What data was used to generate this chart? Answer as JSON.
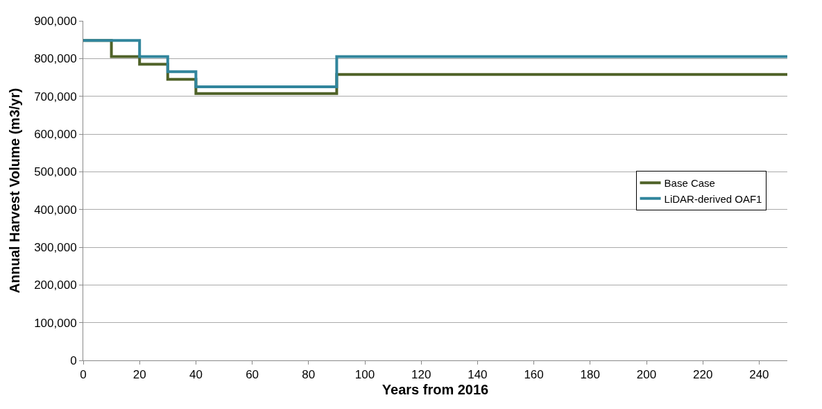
{
  "chart_data": {
    "type": "step",
    "xlabel": "Years from 2016",
    "ylabel": "Annual Harvest Volume (m3/yr)",
    "series": [
      {
        "name": "Base Case",
        "color": "#4f6228",
        "x": [
          0,
          10,
          20,
          30,
          40,
          90,
          250
        ],
        "values": [
          848000,
          805000,
          785000,
          745000,
          707000,
          758000,
          758000
        ]
      },
      {
        "name": "LiDAR-derived OAF1",
        "color": "#31859c",
        "x": [
          0,
          20,
          30,
          40,
          90,
          250
        ],
        "values": [
          848000,
          805000,
          765000,
          725000,
          805000,
          805000
        ]
      }
    ],
    "xlim": [
      0,
      250
    ],
    "xticks": [
      0,
      20,
      40,
      60,
      80,
      100,
      120,
      140,
      160,
      180,
      200,
      220,
      240
    ],
    "ylim": [
      0,
      900000
    ],
    "yticks": [
      {
        "value": 0,
        "label": "0"
      },
      {
        "value": 100000,
        "label": "100,000"
      },
      {
        "value": 200000,
        "label": "200,000"
      },
      {
        "value": 300000,
        "label": "300,000"
      },
      {
        "value": 400000,
        "label": "400,000"
      },
      {
        "value": 500000,
        "label": "500,000"
      },
      {
        "value": 600000,
        "label": "600,000"
      },
      {
        "value": 700000,
        "label": "700,000"
      },
      {
        "value": 800000,
        "label": "800,000"
      },
      {
        "value": 900000,
        "label": "900,000"
      }
    ],
    "grid": "y",
    "legend": "right",
    "marker": "none",
    "line_style": "solid"
  }
}
